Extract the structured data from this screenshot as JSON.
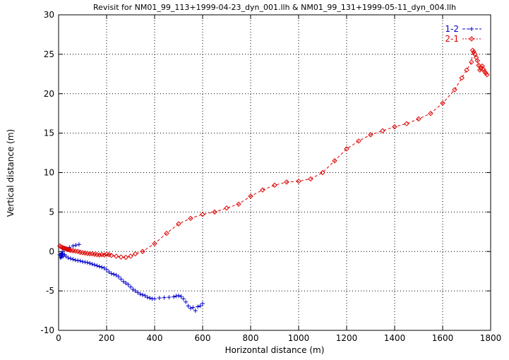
{
  "chart_data": {
    "type": "scatter",
    "title": "Revisit for NM01_99_113+1999-04-23_dyn_001.llh & NM01_99_131+1999-05-11_dyn_004.llh",
    "xlabel": "Horizontal distance (m)",
    "ylabel": "Vertical distance (m)",
    "xlim": [
      0,
      1800
    ],
    "ylim": [
      -10,
      30
    ],
    "xticks": [
      0,
      200,
      400,
      600,
      800,
      1000,
      1200,
      1400,
      1600,
      1800
    ],
    "yticks": [
      -10,
      -5,
      0,
      5,
      10,
      15,
      20,
      25,
      30
    ],
    "grid": true,
    "legend_position": "top-right",
    "series": [
      {
        "name": "1-2",
        "color": "#0000cc",
        "marker": "plus",
        "x": [
          5,
          8,
          10,
          12,
          15,
          20,
          25,
          30,
          40,
          50,
          60,
          70,
          80,
          90,
          100,
          110,
          120,
          130,
          140,
          150,
          160,
          170,
          180,
          190,
          200,
          210,
          220,
          230,
          240,
          250,
          260,
          270,
          280,
          290,
          300,
          310,
          320,
          330,
          340,
          350,
          360,
          370,
          380,
          390,
          400,
          420,
          440,
          460,
          480,
          490,
          500,
          510,
          520,
          530,
          540,
          550,
          560,
          570,
          580,
          590,
          600,
          12,
          18,
          30,
          45,
          60,
          72,
          85
        ],
        "y": [
          -0.4,
          -0.8,
          -0.5,
          -0.7,
          -0.3,
          -0.6,
          -0.4,
          -0.6,
          -0.8,
          -0.9,
          -1.0,
          -1.1,
          -1.15,
          -1.2,
          -1.3,
          -1.35,
          -1.4,
          -1.5,
          -1.6,
          -1.7,
          -1.8,
          -1.9,
          -2.0,
          -2.1,
          -2.3,
          -2.6,
          -2.8,
          -2.9,
          -3.0,
          -3.2,
          -3.5,
          -3.8,
          -4.0,
          -4.2,
          -4.5,
          -4.8,
          -5.0,
          -5.2,
          -5.4,
          -5.5,
          -5.6,
          -5.8,
          -5.9,
          -6.0,
          -6.0,
          -5.9,
          -5.85,
          -5.8,
          -5.75,
          -5.65,
          -5.6,
          -5.7,
          -6.0,
          -6.4,
          -6.9,
          -7.2,
          -7.1,
          -7.5,
          -7.0,
          -6.9,
          -6.6,
          -0.2,
          0.0,
          0.3,
          0.5,
          0.7,
          0.8,
          0.9
        ]
      },
      {
        "name": "2-1",
        "color": "#dd0000",
        "marker": "diamond",
        "x": [
          5,
          10,
          15,
          20,
          25,
          30,
          35,
          40,
          45,
          50,
          60,
          70,
          80,
          90,
          100,
          110,
          120,
          130,
          140,
          150,
          160,
          170,
          180,
          190,
          200,
          210,
          220,
          240,
          260,
          280,
          300,
          320,
          350,
          400,
          450,
          500,
          550,
          600,
          650,
          700,
          750,
          800,
          850,
          900,
          950,
          1000,
          1050,
          1100,
          1150,
          1200,
          1250,
          1300,
          1350,
          1400,
          1450,
          1500,
          1550,
          1600,
          1650,
          1680,
          1700,
          1720,
          1725,
          1730,
          1735,
          1740,
          1745,
          1750,
          1755,
          1760,
          1765,
          1770,
          1775,
          1780,
          1785
        ],
        "y": [
          0.7,
          0.6,
          0.5,
          0.45,
          0.4,
          0.35,
          0.3,
          0.25,
          0.2,
          0.15,
          0.1,
          0.05,
          0.0,
          -0.1,
          -0.15,
          -0.2,
          -0.25,
          -0.3,
          -0.3,
          -0.35,
          -0.4,
          -0.45,
          -0.4,
          -0.45,
          -0.35,
          -0.4,
          -0.5,
          -0.6,
          -0.7,
          -0.75,
          -0.6,
          -0.3,
          0.0,
          1.0,
          2.3,
          3.5,
          4.2,
          4.7,
          5.0,
          5.5,
          6.0,
          7.0,
          7.8,
          8.4,
          8.8,
          8.9,
          9.2,
          10.0,
          11.5,
          13.0,
          14.0,
          14.8,
          15.3,
          15.8,
          16.2,
          16.8,
          17.5,
          18.8,
          20.5,
          22.0,
          23.0,
          24.0,
          25.5,
          25.3,
          25.0,
          24.6,
          24.2,
          23.6,
          23.0,
          23.2,
          23.5,
          23.1,
          22.8,
          22.6,
          22.4
        ]
      }
    ]
  }
}
